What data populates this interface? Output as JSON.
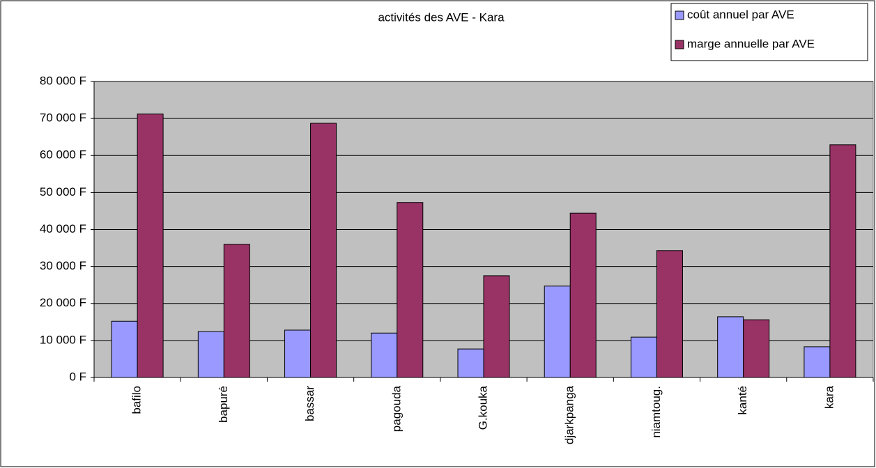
{
  "chart_data": {
    "type": "bar",
    "title": "activités des AVE - Kara",
    "categories": [
      "bafilo",
      "bapuré",
      "bassar",
      "pagouda",
      "G.kouka",
      "djarkpanga",
      "niamtoug.",
      "kanté",
      "kara"
    ],
    "series": [
      {
        "name": "coût annuel par AVE",
        "color": "#9999ff",
        "values": [
          15200,
          12400,
          12800,
          12000,
          7700,
          24700,
          10900,
          16400,
          8300
        ]
      },
      {
        "name": "marge annuelle par AVE",
        "color": "#993366",
        "values": [
          71200,
          36000,
          68700,
          47300,
          27500,
          44400,
          34300,
          15600,
          62900
        ]
      }
    ],
    "ylim": [
      0,
      80000
    ],
    "yticks": [
      {
        "value": 0,
        "label": "0 F"
      },
      {
        "value": 10000,
        "label": "10 000 F"
      },
      {
        "value": 20000,
        "label": "20 000 F"
      },
      {
        "value": 30000,
        "label": "30 000 F"
      },
      {
        "value": 40000,
        "label": "40 000 F"
      },
      {
        "value": 50000,
        "label": "50 000 F"
      },
      {
        "value": 60000,
        "label": "60 000 F"
      },
      {
        "value": 70000,
        "label": "70 000 F"
      },
      {
        "value": 80000,
        "label": "80 000 F"
      }
    ],
    "grid": true,
    "legend": "top-right"
  }
}
